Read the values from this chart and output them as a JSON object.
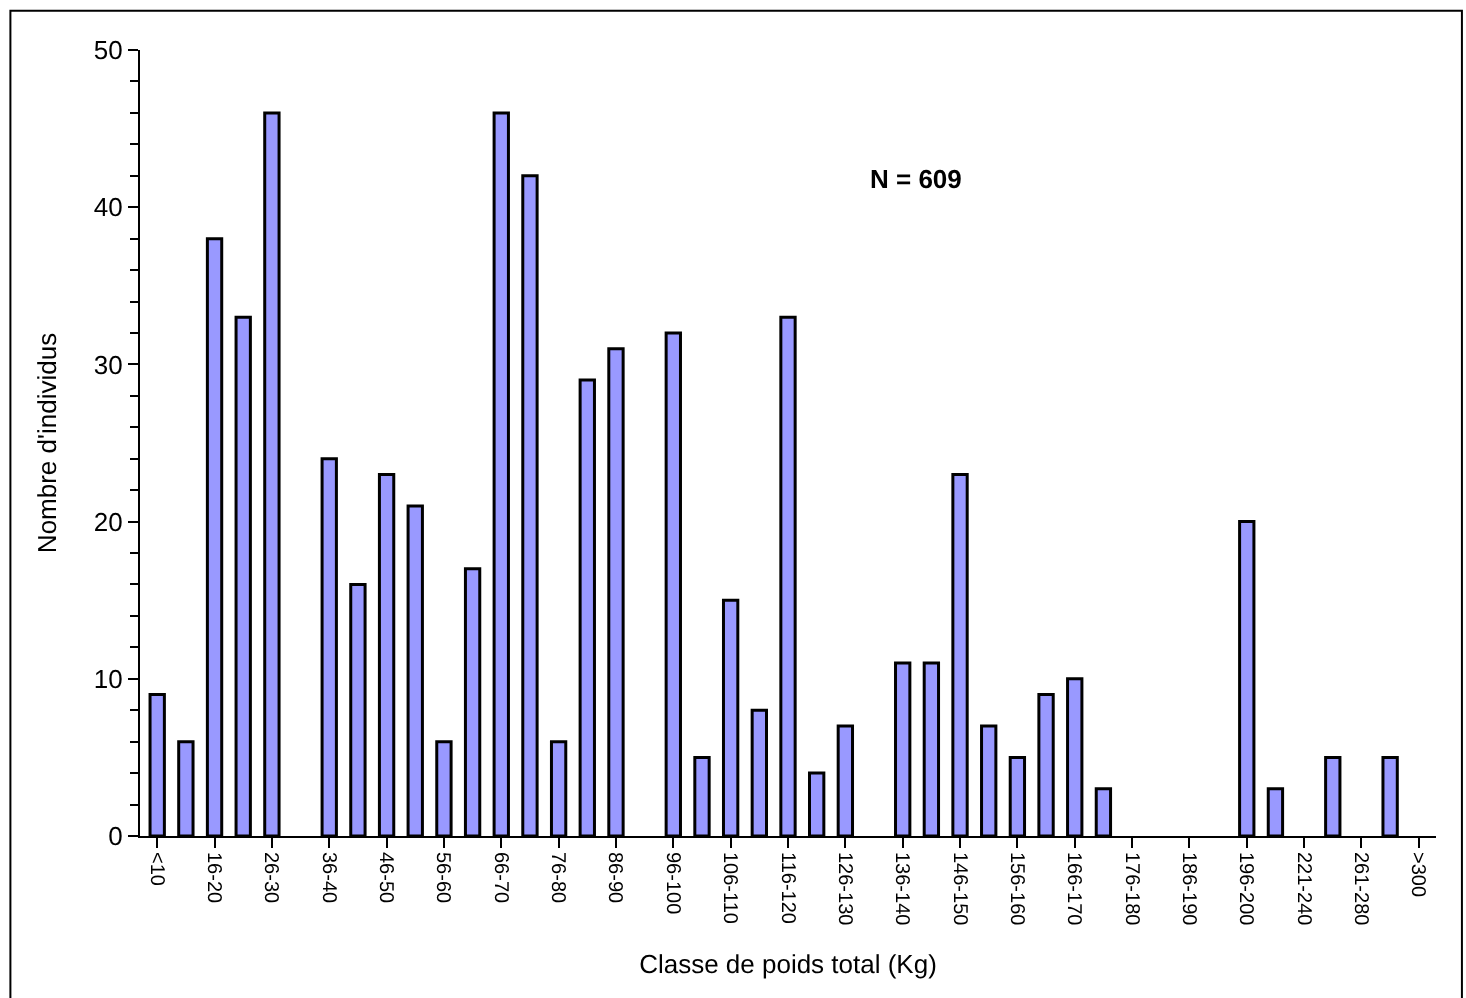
{
  "chart_data": {
    "type": "bar",
    "xlabel": "Classe de poids total (Kg)",
    "ylabel": "Nombre d'individus",
    "categories": [
      "<10",
      null,
      "16-20",
      null,
      "26-30",
      null,
      "36-40",
      null,
      "46-50",
      null,
      "56-60",
      null,
      "66-70",
      null,
      "76-80",
      null,
      "86-90",
      null,
      "96-100",
      null,
      "106-110",
      null,
      "116-120",
      null,
      "126-130",
      null,
      "136-140",
      null,
      "146-150",
      null,
      "156-160",
      null,
      "166-170",
      null,
      "176-180",
      null,
      "186-190",
      null,
      "196-200",
      null,
      "221-240",
      null,
      "261-280",
      null,
      ">300"
    ],
    "values": [
      9,
      6,
      38,
      33,
      46,
      null,
      24,
      16,
      23,
      21,
      6,
      17,
      46,
      42,
      6,
      29,
      31,
      null,
      32,
      5,
      15,
      8,
      33,
      4,
      7,
      null,
      11,
      11,
      23,
      7,
      5,
      9,
      10,
      3,
      null,
      null,
      null,
      null,
      20,
      3,
      null,
      5,
      null,
      5,
      null
    ],
    "color": "#9999ff",
    "ylim": [
      0,
      50
    ],
    "yticks": [
      0,
      10,
      20,
      30,
      40,
      50
    ],
    "annotations": [
      "N = 609"
    ]
  }
}
